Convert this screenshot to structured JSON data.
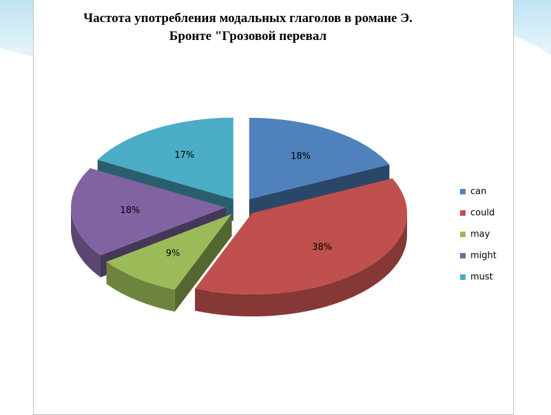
{
  "chart_data": {
    "type": "pie3d",
    "title": "Частота употребления модальных глаголов в романе Э. Бронте \"Грозовой перевал",
    "categories": [
      "can",
      "could",
      "may",
      "might",
      "must"
    ],
    "values": [
      18,
      38,
      9,
      18,
      17
    ],
    "value_labels": [
      "18%",
      "38%",
      "9%",
      "18%",
      "17%"
    ],
    "colors": [
      "#4f81bd",
      "#c0504d",
      "#9bbb59",
      "#8064a2",
      "#4bacc6"
    ],
    "legend": "right"
  }
}
